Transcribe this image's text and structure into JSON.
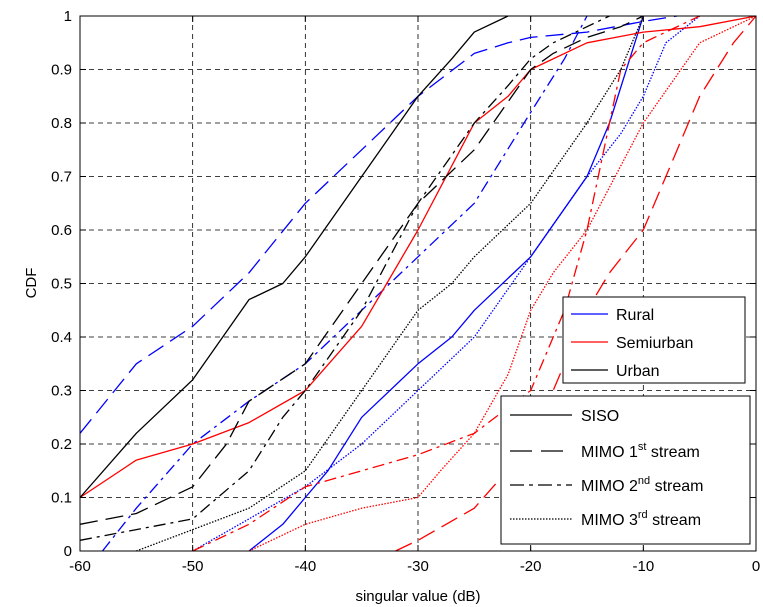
{
  "chart_data": {
    "type": "line",
    "title": "",
    "xlabel": "singular value (dB)",
    "ylabel": "CDF",
    "xlim": [
      -60,
      0
    ],
    "ylim": [
      0,
      1
    ],
    "x_ticks": [
      "-60",
      "-50",
      "-40",
      "-30",
      "-20",
      "-10",
      "0"
    ],
    "y_ticks": [
      "0",
      "0.1",
      "0.2",
      "0.3",
      "0.4",
      "0.5",
      "0.6",
      "0.7",
      "0.8",
      "0.9",
      "1"
    ],
    "grid": "dashed",
    "colors": {
      "Rural": "#0000ff",
      "Semiurban": "#ff0000",
      "Urban": "#000000"
    },
    "legend_environment": {
      "placement": "right",
      "entries": [
        {
          "label": "Rural",
          "color": "#0000ff"
        },
        {
          "label": "Semiurban",
          "color": "#ff0000"
        },
        {
          "label": "Urban",
          "color": "#000000"
        }
      ]
    },
    "legend_stream": {
      "placement": "bottom-right",
      "entries": [
        {
          "label": "SISO",
          "style": "solid"
        },
        {
          "label_main": "MIMO 1",
          "label_sup": "st",
          "label_tail": " stream",
          "style": "dashed"
        },
        {
          "label_main": "MIMO 2",
          "label_sup": "nd",
          "label_tail": " stream",
          "style": "dashdot"
        },
        {
          "label_main": "MIMO 3",
          "label_sup": "rd",
          "label_tail": " stream",
          "style": "dotted"
        }
      ]
    },
    "series": [
      {
        "env": "Rural",
        "stream": "SISO",
        "x": [
          -45,
          -42,
          -40,
          -38,
          -35,
          -30,
          -27,
          -25,
          -20,
          -15,
          -13,
          -10
        ],
        "y": [
          0.0,
          0.05,
          0.1,
          0.15,
          0.25,
          0.35,
          0.4,
          0.45,
          0.55,
          0.7,
          0.8,
          1.0
        ]
      },
      {
        "env": "Rural",
        "stream": "MIMO 1st stream",
        "x": [
          -60,
          -55,
          -50,
          -45,
          -40,
          -35,
          -30,
          -25,
          -22,
          -20,
          -15,
          -10,
          -7
        ],
        "y": [
          0.22,
          0.35,
          0.42,
          0.52,
          0.65,
          0.75,
          0.85,
          0.93,
          0.95,
          0.96,
          0.97,
          0.99,
          1.0
        ]
      },
      {
        "env": "Rural",
        "stream": "MIMO 2nd stream",
        "x": [
          -58,
          -55,
          -50,
          -45,
          -40,
          -35,
          -30,
          -25,
          -20,
          -17,
          -15
        ],
        "y": [
          0.0,
          0.08,
          0.2,
          0.28,
          0.35,
          0.45,
          0.55,
          0.65,
          0.82,
          0.92,
          1.0
        ]
      },
      {
        "env": "Rural",
        "stream": "MIMO 3rd stream",
        "x": [
          -50,
          -45,
          -40,
          -35,
          -30,
          -25,
          -20,
          -15,
          -12,
          -10,
          -8,
          -5
        ],
        "y": [
          0.0,
          0.06,
          0.12,
          0.2,
          0.3,
          0.4,
          0.55,
          0.7,
          0.78,
          0.85,
          0.95,
          1.0
        ]
      },
      {
        "env": "Semiurban",
        "stream": "SISO",
        "x": [
          -60,
          -55,
          -50,
          -45,
          -40,
          -35,
          -30,
          -27,
          -25,
          -22,
          -20,
          -15,
          -10,
          -5,
          0
        ],
        "y": [
          0.1,
          0.17,
          0.2,
          0.24,
          0.3,
          0.42,
          0.6,
          0.72,
          0.8,
          0.85,
          0.9,
          0.95,
          0.97,
          0.98,
          1.0
        ]
      },
      {
        "env": "Semiurban",
        "stream": "MIMO 1st stream",
        "x": [
          -32,
          -30,
          -25,
          -20,
          -18,
          -15,
          -13,
          -10,
          -8,
          -5,
          -2,
          0
        ],
        "y": [
          0.0,
          0.02,
          0.08,
          0.2,
          0.3,
          0.45,
          0.52,
          0.6,
          0.7,
          0.85,
          0.95,
          1.0
        ]
      },
      {
        "env": "Semiurban",
        "stream": "MIMO 2nd stream",
        "x": [
          -50,
          -45,
          -40,
          -35,
          -30,
          -25,
          -20,
          -17,
          -15,
          -13,
          -12,
          -10,
          -5
        ],
        "y": [
          0.0,
          0.05,
          0.12,
          0.15,
          0.18,
          0.22,
          0.3,
          0.45,
          0.6,
          0.8,
          0.9,
          0.95,
          1.0
        ]
      },
      {
        "env": "Semiurban",
        "stream": "MIMO 3rd stream",
        "x": [
          -45,
          -40,
          -35,
          -30,
          -28,
          -25,
          -22,
          -20,
          -18,
          -15,
          -12,
          -10,
          -5,
          0
        ],
        "y": [
          0.0,
          0.05,
          0.08,
          0.1,
          0.15,
          0.22,
          0.33,
          0.45,
          0.52,
          0.6,
          0.72,
          0.8,
          0.95,
          1.0
        ]
      },
      {
        "env": "Urban",
        "stream": "SISO",
        "x": [
          -60,
          -55,
          -50,
          -48,
          -45,
          -42,
          -40,
          -35,
          -30,
          -27,
          -25,
          -22
        ],
        "y": [
          0.1,
          0.22,
          0.32,
          0.38,
          0.47,
          0.5,
          0.55,
          0.7,
          0.85,
          0.92,
          0.97,
          1.0
        ]
      },
      {
        "env": "Urban",
        "stream": "MIMO 1st stream",
        "x": [
          -60,
          -55,
          -50,
          -47,
          -45,
          -40,
          -35,
          -30,
          -25,
          -20,
          -18,
          -15,
          -12,
          -10
        ],
        "y": [
          0.05,
          0.07,
          0.12,
          0.2,
          0.28,
          0.35,
          0.5,
          0.65,
          0.75,
          0.9,
          0.93,
          0.96,
          0.98,
          1.0
        ]
      },
      {
        "env": "Urban",
        "stream": "MIMO 2nd stream",
        "x": [
          -60,
          -55,
          -50,
          -45,
          -42,
          -40,
          -35,
          -30,
          -25,
          -22,
          -20,
          -18,
          -15,
          -13
        ],
        "y": [
          0.02,
          0.04,
          0.06,
          0.15,
          0.25,
          0.3,
          0.45,
          0.65,
          0.8,
          0.87,
          0.92,
          0.95,
          0.98,
          1.0
        ]
      },
      {
        "env": "Urban",
        "stream": "MIMO 3rd stream",
        "x": [
          -55,
          -50,
          -45,
          -40,
          -35,
          -30,
          -27,
          -25,
          -20,
          -15,
          -12,
          -10
        ],
        "y": [
          0.0,
          0.04,
          0.08,
          0.15,
          0.3,
          0.45,
          0.5,
          0.55,
          0.65,
          0.8,
          0.9,
          1.0
        ]
      }
    ]
  }
}
